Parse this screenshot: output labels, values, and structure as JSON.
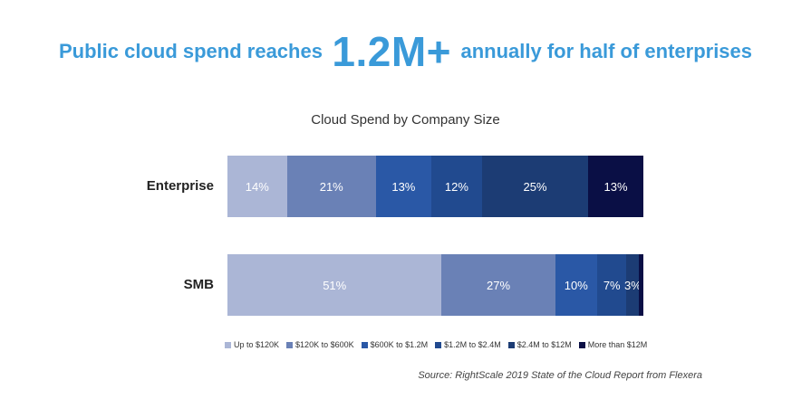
{
  "headline": {
    "before": "Public cloud spend reaches",
    "highlight": "1.2M+",
    "after": "annually for half of enterprises"
  },
  "chart_data": {
    "type": "bar",
    "orientation": "horizontal",
    "stacked": true,
    "title": "Cloud Spend by Company Size",
    "categories": [
      "Enterprise",
      "SMB"
    ],
    "series": [
      {
        "name": "Up to $120K",
        "values": [
          14,
          51
        ],
        "color": "#abb6d6"
      },
      {
        "name": "$120K to $600K",
        "values": [
          21,
          27
        ],
        "color": "#6a81b6"
      },
      {
        "name": "$600K to $1.2M",
        "values": [
          13,
          10
        ],
        "color": "#2a58a6"
      },
      {
        "name": "$1.2M to $2.4M",
        "values": [
          12,
          7
        ],
        "color": "#214a8f"
      },
      {
        "name": "$2.4M to $12M",
        "values": [
          25,
          3
        ],
        "color": "#1c3c74"
      },
      {
        "name": "More than $12M",
        "values": [
          13,
          1
        ],
        "color": "#0a0f45"
      }
    ],
    "data_labels": [
      [
        "14%",
        "21%",
        "13%",
        "12%",
        "25%",
        "13%"
      ],
      [
        "51%",
        "27%",
        "10%",
        "7%",
        "3%",
        ""
      ]
    ],
    "unit": "%",
    "legend_position": "bottom"
  },
  "source": "Source: RightScale 2019 State of the Cloud Report from Flexera"
}
